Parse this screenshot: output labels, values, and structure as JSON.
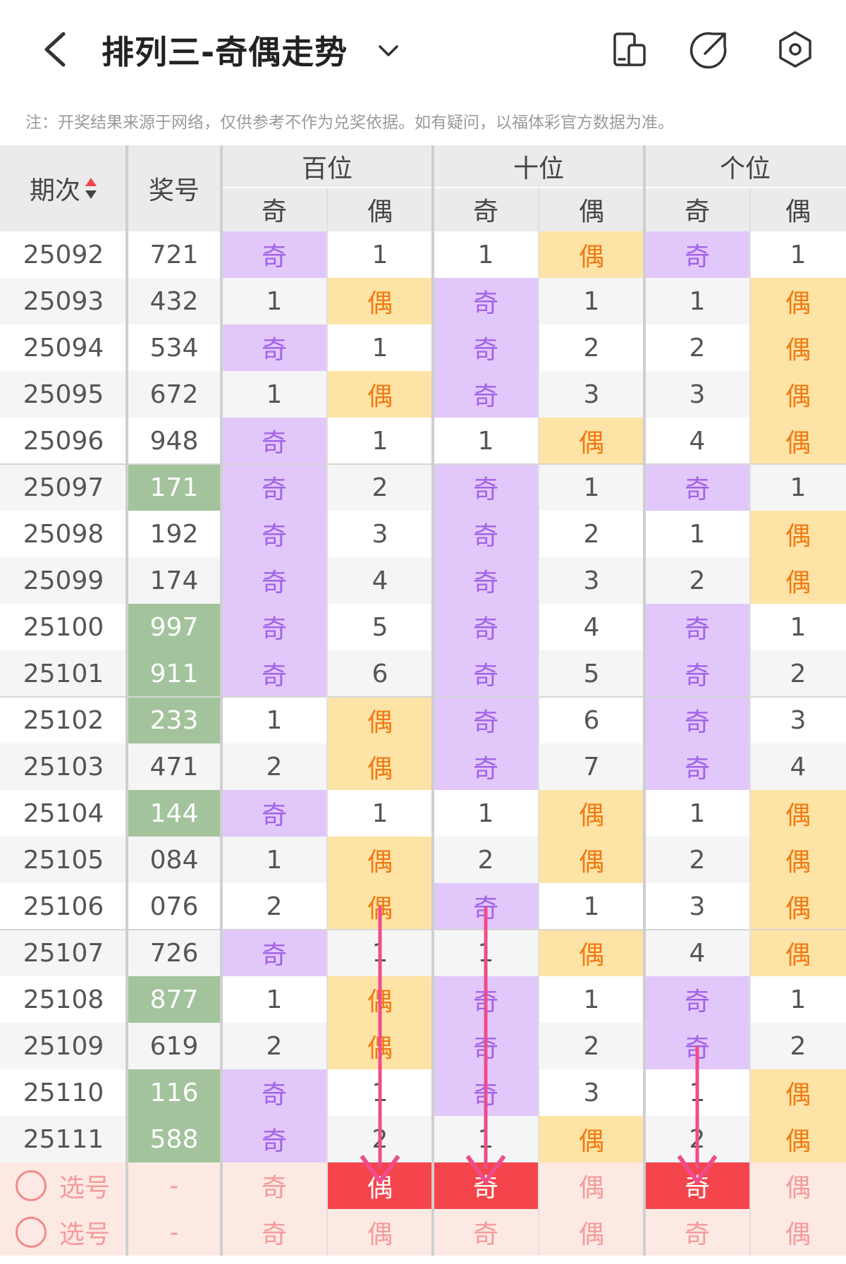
{
  "header": {
    "title": "排列三-奇偶走势",
    "icons": [
      "back-icon",
      "chevron-down-icon",
      "device-icon",
      "share-icon",
      "settings-icon"
    ]
  },
  "note": "注：开奖结果来源于网络，仅供参考不作为兑奖依据。如有疑问，以福体彩官方数据为准。",
  "table": {
    "col_period": "期次",
    "col_number": "奖号",
    "groups": [
      "百位",
      "十位",
      "个位"
    ],
    "sub_odd": "奇",
    "sub_even": "偶",
    "rows": [
      {
        "period": "25092",
        "number": "721",
        "highlight": false,
        "cells": [
          "奇",
          "1",
          "1",
          "偶",
          "奇",
          "1"
        ]
      },
      {
        "period": "25093",
        "number": "432",
        "highlight": false,
        "cells": [
          "1",
          "偶",
          "奇",
          "1",
          "1",
          "偶"
        ]
      },
      {
        "period": "25094",
        "number": "534",
        "highlight": false,
        "cells": [
          "奇",
          "1",
          "奇",
          "2",
          "2",
          "偶"
        ]
      },
      {
        "period": "25095",
        "number": "672",
        "highlight": false,
        "cells": [
          "1",
          "偶",
          "奇",
          "3",
          "3",
          "偶"
        ]
      },
      {
        "period": "25096",
        "number": "948",
        "highlight": false,
        "cells": [
          "奇",
          "1",
          "1",
          "偶",
          "4",
          "偶"
        ]
      },
      {
        "period": "25097",
        "number": "171",
        "highlight": true,
        "cells": [
          "奇",
          "2",
          "奇",
          "1",
          "奇",
          "1"
        ]
      },
      {
        "period": "25098",
        "number": "192",
        "highlight": false,
        "cells": [
          "奇",
          "3",
          "奇",
          "2",
          "1",
          "偶"
        ]
      },
      {
        "period": "25099",
        "number": "174",
        "highlight": false,
        "cells": [
          "奇",
          "4",
          "奇",
          "3",
          "2",
          "偶"
        ]
      },
      {
        "period": "25100",
        "number": "997",
        "highlight": true,
        "cells": [
          "奇",
          "5",
          "奇",
          "4",
          "奇",
          "1"
        ]
      },
      {
        "period": "25101",
        "number": "911",
        "highlight": true,
        "cells": [
          "奇",
          "6",
          "奇",
          "5",
          "奇",
          "2"
        ]
      },
      {
        "period": "25102",
        "number": "233",
        "highlight": true,
        "cells": [
          "1",
          "偶",
          "奇",
          "6",
          "奇",
          "3"
        ]
      },
      {
        "period": "25103",
        "number": "471",
        "highlight": false,
        "cells": [
          "2",
          "偶",
          "奇",
          "7",
          "奇",
          "4"
        ]
      },
      {
        "period": "25104",
        "number": "144",
        "highlight": true,
        "cells": [
          "奇",
          "1",
          "1",
          "偶",
          "1",
          "偶"
        ]
      },
      {
        "period": "25105",
        "number": "084",
        "highlight": false,
        "cells": [
          "1",
          "偶",
          "2",
          "偶",
          "2",
          "偶"
        ]
      },
      {
        "period": "25106",
        "number": "076",
        "highlight": false,
        "cells": [
          "2",
          "偶",
          "奇",
          "1",
          "3",
          "偶"
        ]
      },
      {
        "period": "25107",
        "number": "726",
        "highlight": false,
        "cells": [
          "奇",
          "1",
          "1",
          "偶",
          "4",
          "偶"
        ]
      },
      {
        "period": "25108",
        "number": "877",
        "highlight": true,
        "cells": [
          "1",
          "偶",
          "奇",
          "1",
          "奇",
          "1"
        ]
      },
      {
        "period": "25109",
        "number": "619",
        "highlight": false,
        "cells": [
          "2",
          "偶",
          "奇",
          "2",
          "奇",
          "2"
        ]
      },
      {
        "period": "25110",
        "number": "116",
        "highlight": true,
        "cells": [
          "奇",
          "1",
          "奇",
          "3",
          "1",
          "偶"
        ]
      },
      {
        "period": "25111",
        "number": "588",
        "highlight": true,
        "cells": [
          "奇",
          "2",
          "1",
          "偶",
          "2",
          "偶"
        ]
      }
    ],
    "select_rows": [
      {
        "label": "选号",
        "number": "-",
        "cells": [
          "奇",
          "偶",
          "奇",
          "偶",
          "奇",
          "偶"
        ],
        "selected": [
          false,
          true,
          true,
          false,
          true,
          false
        ]
      },
      {
        "label": "选号",
        "number": "-",
        "cells": [
          "奇",
          "偶",
          "奇",
          "偶",
          "奇",
          "偶"
        ],
        "selected": [
          false,
          false,
          false,
          false,
          false,
          false
        ]
      }
    ]
  },
  "colors": {
    "odd_bg": "#e2c8fa",
    "odd_text": "#a263e8",
    "even_bg": "#fde3a6",
    "even_text": "#f07a12",
    "number_highlight_bg": "#a3c39c",
    "select_bg": "#fde9e3",
    "select_text": "#f49b9b",
    "selected_bg": "#f4454c",
    "arrow": "#ee4c8c"
  }
}
